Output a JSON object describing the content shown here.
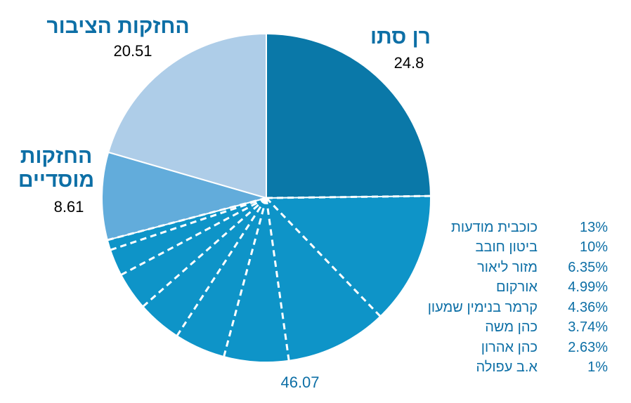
{
  "chart_data": {
    "type": "pie",
    "title": "",
    "slices": [
      {
        "name": "רן סתו",
        "value": 24.8,
        "color": "#0a78a8",
        "label": "24.8"
      },
      {
        "name": "",
        "value": 46.07,
        "color": "#0e94c8",
        "label": "46.07"
      },
      {
        "name": "החזקות מוסדיים",
        "name_lines": [
          "החזקות",
          "מוסדיים"
        ],
        "value": 8.61,
        "color": "#62acdb",
        "label": "8.61"
      },
      {
        "name": "החזקות הציבור",
        "value": 20.51,
        "color": "#aecde8",
        "label": "20.51"
      }
    ],
    "breakdown_of_slice": 1,
    "breakdown": [
      {
        "name": "כוכבית מודעות",
        "value": "13%"
      },
      {
        "name": "ביטון חובב",
        "value": "10%"
      },
      {
        "name": "מזור ליאור",
        "value": "6.35%"
      },
      {
        "name": "אורקום",
        "value": "4.99%"
      },
      {
        "name": "קרמר בנימין שמעון",
        "value": "4.36%"
      },
      {
        "name": "כהן משה",
        "value": "3.74%"
      },
      {
        "name": "כהן אהרון",
        "value": "2.63%"
      },
      {
        "name": "א.ב עפולה",
        "value": "1%"
      }
    ]
  }
}
